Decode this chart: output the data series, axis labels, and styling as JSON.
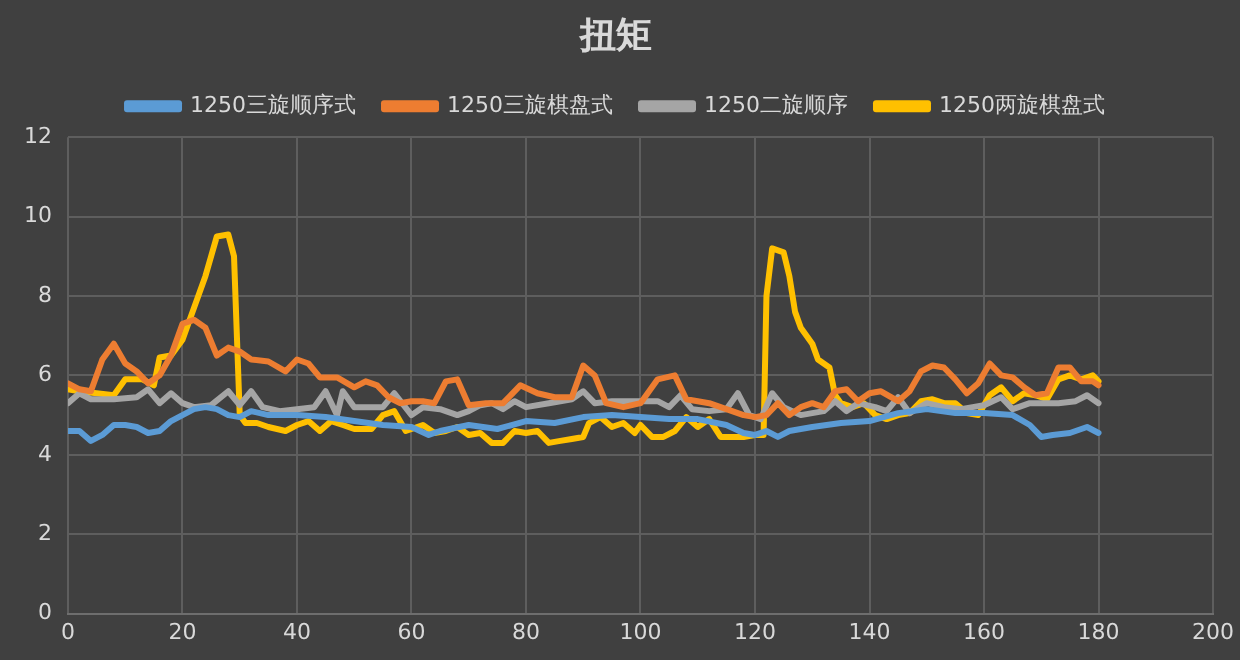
{
  "chart_data": {
    "type": "line",
    "title": "扭矩",
    "xlim": [
      0,
      200
    ],
    "xticks": [
      0,
      20,
      40,
      60,
      80,
      100,
      120,
      140,
      160,
      180,
      200
    ],
    "ylim": [
      0,
      12
    ],
    "yticks": [
      0,
      2,
      4,
      6,
      8,
      10,
      12
    ],
    "grid": true,
    "legend": "top",
    "marker": "none",
    "line_style": "solid",
    "series": [
      {
        "name": "1250三旋顺序式",
        "color": "#5b9bd5",
        "x": [
          0,
          2,
          4,
          6,
          8,
          10,
          12,
          14,
          16,
          18,
          20,
          22,
          24,
          26,
          28,
          30,
          32,
          35,
          40,
          45,
          50,
          55,
          60,
          63,
          65,
          70,
          75,
          80,
          85,
          90,
          95,
          100,
          105,
          110,
          115,
          118,
          120,
          122,
          124,
          126,
          130,
          135,
          140,
          145,
          150,
          155,
          160,
          165,
          168,
          170,
          172,
          175,
          178,
          180
        ],
        "values": [
          4.6,
          4.6,
          4.35,
          4.5,
          4.75,
          4.75,
          4.7,
          4.55,
          4.6,
          4.85,
          5.0,
          5.15,
          5.2,
          5.15,
          5.0,
          4.95,
          5.1,
          5.0,
          5.0,
          4.95,
          4.85,
          4.75,
          4.7,
          4.5,
          4.6,
          4.75,
          4.65,
          4.85,
          4.8,
          4.95,
          5.0,
          4.95,
          4.9,
          4.9,
          4.75,
          4.55,
          4.5,
          4.6,
          4.45,
          4.6,
          4.7,
          4.8,
          4.85,
          5.05,
          5.15,
          5.05,
          5.05,
          5.0,
          4.75,
          4.45,
          4.5,
          4.55,
          4.7,
          4.55
        ]
      },
      {
        "name": "1250三旋棋盘式",
        "color": "#ed7d31",
        "x": [
          0,
          2,
          4,
          6,
          8,
          10,
          12,
          14,
          16,
          18,
          20,
          22,
          24,
          26,
          28,
          30,
          32,
          35,
          38,
          40,
          42,
          44,
          47,
          50,
          52,
          54,
          56,
          58,
          60,
          62,
          64,
          66,
          68,
          70,
          73,
          76,
          79,
          82,
          85,
          88,
          90,
          92,
          94,
          97,
          100,
          103,
          106,
          108,
          112,
          115,
          118,
          120,
          122,
          124,
          126,
          128,
          130,
          132,
          134,
          136,
          138,
          140,
          142,
          145,
          147,
          149,
          151,
          153,
          155,
          157,
          159,
          161,
          163,
          165,
          167,
          169,
          171,
          173,
          175,
          177,
          179,
          180
        ],
        "values": [
          5.8,
          5.65,
          5.6,
          6.4,
          6.8,
          6.3,
          6.1,
          5.8,
          6.0,
          6.5,
          7.3,
          7.4,
          7.2,
          6.5,
          6.7,
          6.6,
          6.4,
          6.35,
          6.1,
          6.4,
          6.3,
          5.95,
          5.95,
          5.7,
          5.85,
          5.75,
          5.45,
          5.3,
          5.35,
          5.35,
          5.3,
          5.85,
          5.9,
          5.25,
          5.3,
          5.3,
          5.75,
          5.55,
          5.45,
          5.45,
          6.25,
          6.0,
          5.3,
          5.2,
          5.3,
          5.9,
          6.0,
          5.4,
          5.3,
          5.15,
          5.0,
          4.95,
          5.0,
          5.3,
          5.0,
          5.2,
          5.3,
          5.2,
          5.6,
          5.65,
          5.35,
          5.55,
          5.6,
          5.35,
          5.6,
          6.1,
          6.25,
          6.2,
          5.9,
          5.55,
          5.8,
          6.3,
          6.0,
          5.95,
          5.7,
          5.5,
          5.55,
          6.2,
          6.2,
          5.85,
          5.85,
          5.75
        ]
      },
      {
        "name": "1250二旋顺序",
        "color": "#a5a5a5",
        "x": [
          0,
          2,
          4,
          8,
          12,
          14,
          16,
          18,
          20,
          22,
          25,
          28,
          30,
          32,
          34,
          37,
          40,
          43,
          45,
          47,
          48,
          50,
          55,
          57,
          60,
          62,
          65,
          68,
          70,
          72,
          74,
          76,
          78,
          80,
          84,
          88,
          90,
          92,
          95,
          100,
          103,
          105,
          107,
          109,
          112,
          115,
          117,
          119,
          121,
          123,
          125,
          128,
          132,
          134,
          136,
          138,
          141,
          143,
          145,
          147,
          150,
          153,
          156,
          158,
          160,
          163,
          165,
          168,
          170,
          173,
          176,
          178,
          180
        ],
        "values": [
          5.3,
          5.55,
          5.4,
          5.4,
          5.45,
          5.65,
          5.3,
          5.55,
          5.3,
          5.2,
          5.25,
          5.6,
          5.25,
          5.6,
          5.2,
          5.1,
          5.15,
          5.2,
          5.6,
          5.0,
          5.6,
          5.2,
          5.2,
          5.55,
          5.0,
          5.2,
          5.15,
          5.0,
          5.1,
          5.25,
          5.3,
          5.15,
          5.35,
          5.2,
          5.3,
          5.4,
          5.6,
          5.3,
          5.35,
          5.35,
          5.35,
          5.2,
          5.5,
          5.15,
          5.1,
          5.15,
          5.55,
          5.0,
          4.9,
          5.55,
          5.2,
          5.0,
          5.1,
          5.35,
          5.1,
          5.3,
          5.2,
          5.1,
          5.45,
          5.05,
          5.3,
          5.2,
          5.15,
          5.2,
          5.25,
          5.45,
          5.15,
          5.3,
          5.3,
          5.3,
          5.35,
          5.5,
          5.3
        ]
      },
      {
        "name": "1250两旋棋盘式",
        "color": "#ffc000",
        "x": [
          0,
          2,
          5,
          8,
          10,
          13,
          15,
          16,
          18,
          20,
          22,
          24,
          26,
          28,
          29,
          30,
          31,
          33,
          35,
          38,
          40,
          42,
          44,
          46,
          48,
          50,
          53,
          55,
          57,
          59,
          62,
          64,
          66,
          68,
          70,
          72,
          74,
          76,
          78,
          80,
          82,
          84,
          86,
          88,
          90,
          91,
          93,
          95,
          97,
          99,
          100,
          102,
          104,
          106,
          108,
          110,
          112,
          114,
          116,
          118,
          120,
          121.5,
          122,
          123,
          125,
          126,
          127,
          128,
          130,
          131,
          133,
          134,
          135,
          137,
          139,
          141,
          143,
          145,
          147,
          149,
          151,
          153,
          155,
          157,
          159,
          161,
          163,
          165,
          167,
          169,
          171,
          173,
          175,
          177,
          179,
          180
        ],
        "values": [
          5.65,
          5.6,
          5.55,
          5.5,
          5.9,
          5.9,
          5.75,
          6.45,
          6.5,
          6.9,
          7.7,
          8.5,
          9.5,
          9.55,
          9.0,
          5.0,
          4.8,
          4.8,
          4.7,
          4.6,
          4.75,
          4.85,
          4.6,
          4.85,
          4.75,
          4.65,
          4.65,
          5.0,
          5.1,
          4.6,
          4.75,
          4.55,
          4.6,
          4.7,
          4.5,
          4.55,
          4.3,
          4.3,
          4.6,
          4.55,
          4.6,
          4.3,
          4.35,
          4.4,
          4.45,
          4.8,
          4.95,
          4.7,
          4.8,
          4.55,
          4.75,
          4.45,
          4.45,
          4.6,
          4.95,
          4.7,
          4.9,
          4.45,
          4.45,
          4.45,
          4.5,
          4.5,
          8.0,
          9.2,
          9.1,
          8.5,
          7.6,
          7.2,
          6.8,
          6.4,
          6.2,
          5.5,
          5.3,
          5.2,
          5.3,
          5.0,
          4.9,
          5.0,
          5.05,
          5.35,
          5.4,
          5.3,
          5.3,
          5.05,
          5.0,
          5.5,
          5.7,
          5.35,
          5.55,
          5.5,
          5.4,
          5.9,
          6.0,
          5.9,
          6.0,
          5.85
        ]
      }
    ]
  }
}
